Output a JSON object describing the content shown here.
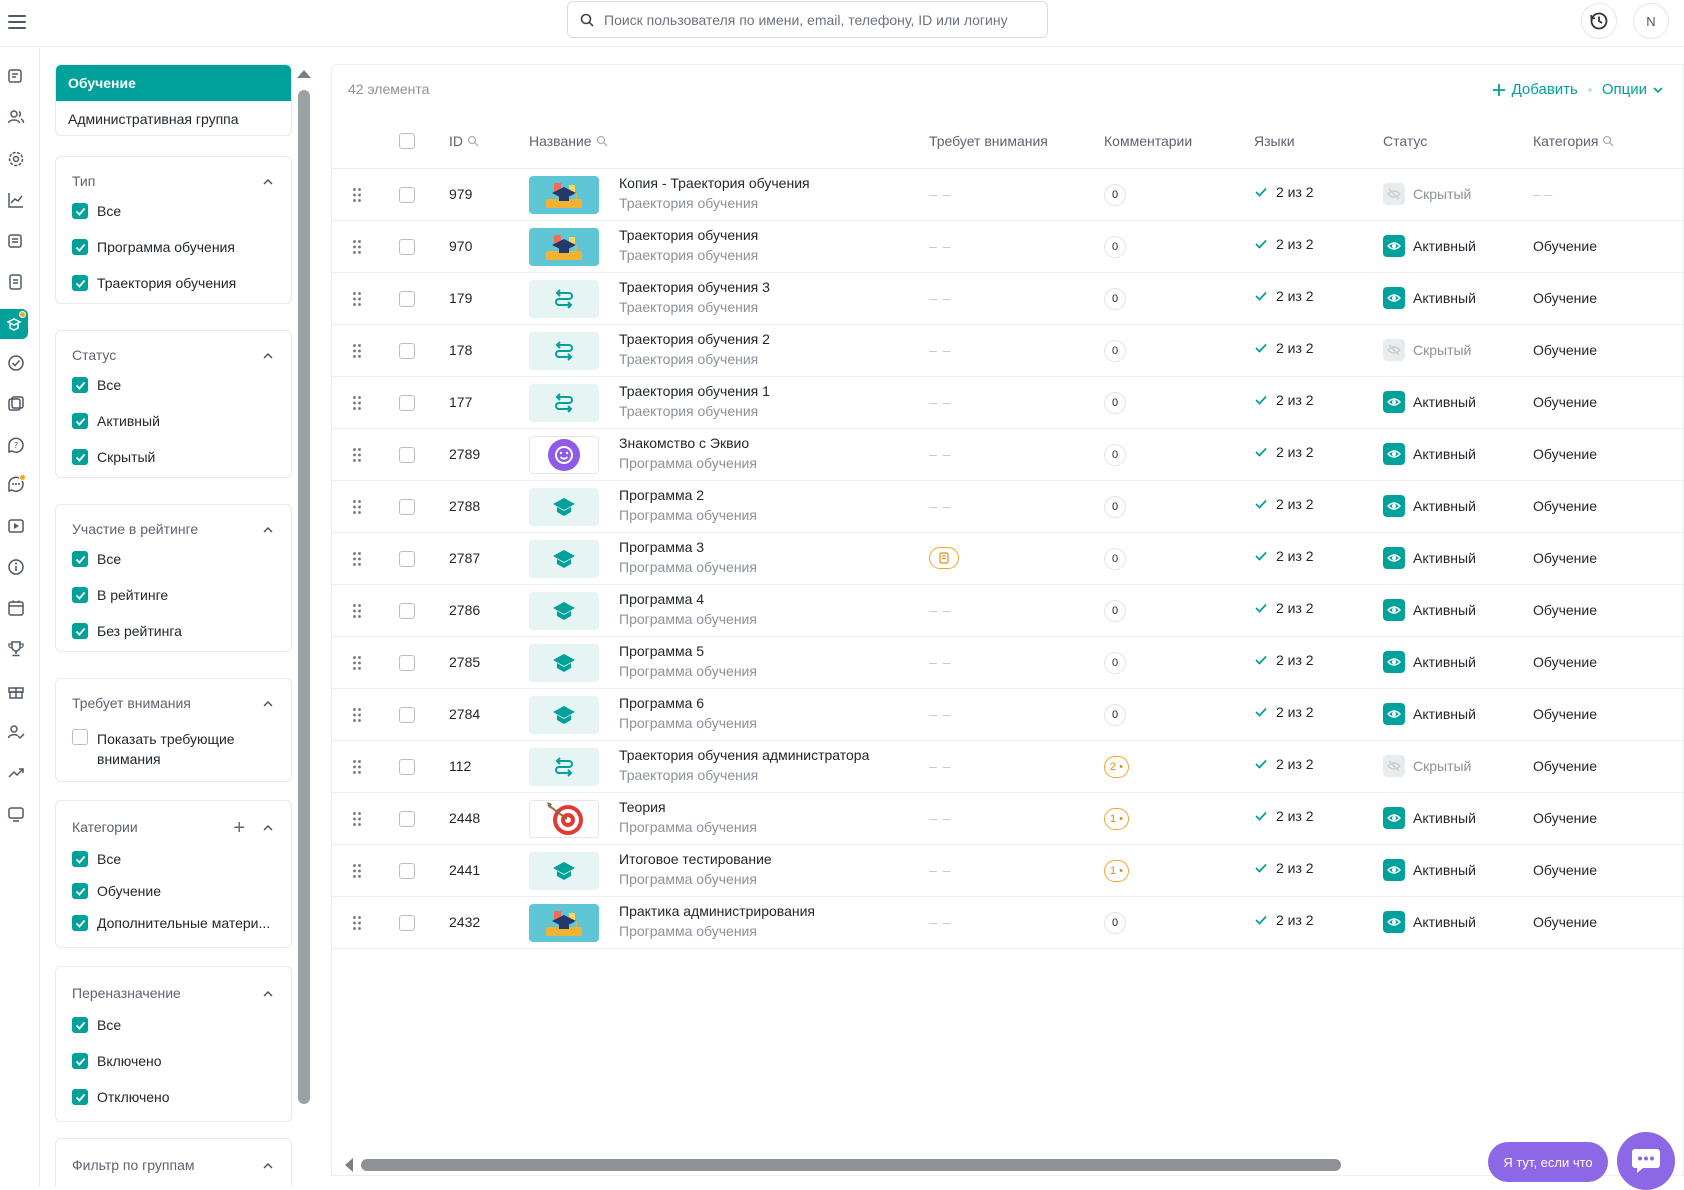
{
  "search": {
    "placeholder": "Поиск пользователя по имени, email, телефону, ID или логину"
  },
  "header": {
    "avatar_letter": "N"
  },
  "sections": {
    "active": "Обучение",
    "other": "Административная группа"
  },
  "filters": {
    "type": {
      "title": "Тип",
      "options": [
        "Все",
        "Программа обучения",
        "Траектория обучения"
      ]
    },
    "status": {
      "title": "Статус",
      "options": [
        "Все",
        "Активный",
        "Скрытый"
      ]
    },
    "rating": {
      "title": "Участие в рейтинге",
      "options": [
        "Все",
        "В рейтинге",
        "Без рейтинга"
      ]
    },
    "attention": {
      "title": "Требует внимания",
      "option_line1": "Показать требующие",
      "option_line2": "внимания"
    },
    "categories": {
      "title": "Категории",
      "options": [
        "Все",
        "Обучение",
        "Дополнительные матери..."
      ]
    },
    "reassign": {
      "title": "Переназначение",
      "options": [
        "Все",
        "Включено",
        "Отключено"
      ]
    },
    "groups": {
      "title": "Фильтр по группам"
    }
  },
  "table": {
    "count": "42 элемента",
    "add_label": "Добавить",
    "options_label": "Опции",
    "columns": {
      "id": "ID",
      "name": "Название",
      "attention": "Требует внимания",
      "comments": "Комментарии",
      "languages": "Языки",
      "status": "Статус",
      "category": "Категория"
    },
    "rows": [
      {
        "id": "979",
        "name": "Копия - Траектория обучения",
        "sub": "Траектория обучения",
        "thumb": "hat",
        "attention": "– –",
        "comments": "0",
        "languages": "2 из 2",
        "status": "Скрытый",
        "category": "– –"
      },
      {
        "id": "970",
        "name": "Траектория обучения",
        "sub": "Траектория обучения",
        "thumb": "hat",
        "attention": "– –",
        "comments": "0",
        "languages": "2 из 2",
        "status": "Активный",
        "category": "Обучение"
      },
      {
        "id": "179",
        "name": "Траектория обучения 3",
        "sub": "Траектория обучения",
        "thumb": "route",
        "attention": "– –",
        "comments": "0",
        "languages": "2 из 2",
        "status": "Активный",
        "category": "Обучение"
      },
      {
        "id": "178",
        "name": "Траектория обучения 2",
        "sub": "Траектория обучения",
        "thumb": "route",
        "attention": "– –",
        "comments": "0",
        "languages": "2 из 2",
        "status": "Скрытый",
        "category": "Обучение"
      },
      {
        "id": "177",
        "name": "Траектория обучения 1",
        "sub": "Траектория обучения",
        "thumb": "route",
        "attention": "– –",
        "comments": "0",
        "languages": "2 из 2",
        "status": "Активный",
        "category": "Обучение"
      },
      {
        "id": "2789",
        "name": "Знакомство с Эквио",
        "sub": "Программа обучения",
        "thumb": "smile",
        "attention": "– –",
        "comments": "0",
        "languages": "2 из 2",
        "status": "Активный",
        "category": "Обучение"
      },
      {
        "id": "2788",
        "name": "Программа 2",
        "sub": "Программа обучения",
        "thumb": "cap",
        "attention": "– –",
        "comments": "0",
        "languages": "2 из 2",
        "status": "Активный",
        "category": "Обучение"
      },
      {
        "id": "2787",
        "name": "Программа 3",
        "sub": "Программа обучения",
        "thumb": "cap",
        "attention": "note",
        "comments": "0",
        "languages": "2 из 2",
        "status": "Активный",
        "category": "Обучение"
      },
      {
        "id": "2786",
        "name": "Программа 4",
        "sub": "Программа обучения",
        "thumb": "cap",
        "attention": "– –",
        "comments": "0",
        "languages": "2 из 2",
        "status": "Активный",
        "category": "Обучение"
      },
      {
        "id": "2785",
        "name": "Программа 5",
        "sub": "Программа обучения",
        "thumb": "cap",
        "attention": "– –",
        "comments": "0",
        "languages": "2 из 2",
        "status": "Активный",
        "category": "Обучение"
      },
      {
        "id": "2784",
        "name": "Программа 6",
        "sub": "Программа обучения",
        "thumb": "cap",
        "attention": "– –",
        "comments": "0",
        "languages": "2 из 2",
        "status": "Активный",
        "category": "Обучение"
      },
      {
        "id": "112",
        "name": "Траектория обучения администратора",
        "sub": "Траектория обучения",
        "thumb": "route",
        "attention": "– –",
        "comments": "2 •",
        "languages": "2 из 2",
        "status": "Скрытый",
        "category": "Обучение"
      },
      {
        "id": "2448",
        "name": "Теория",
        "sub": "Программа обучения",
        "thumb": "target",
        "attention": "– –",
        "comments": "1 •",
        "languages": "2 из 2",
        "status": "Активный",
        "category": "Обучение"
      },
      {
        "id": "2441",
        "name": "Итоговое тестирование",
        "sub": "Программа обучения",
        "thumb": "cap",
        "attention": "– –",
        "comments": "1 •",
        "languages": "2 из 2",
        "status": "Активный",
        "category": "Обучение"
      },
      {
        "id": "2432",
        "name": "Практика администрирования",
        "sub": "Программа обучения",
        "thumb": "hat",
        "attention": "– –",
        "comments": "0",
        "languages": "2 из 2",
        "status": "Активный",
        "category": "Обучение"
      }
    ]
  },
  "help": {
    "label": "Я тут, если что"
  },
  "colors": {
    "accent": "#00a19a",
    "help": "#8c68e6",
    "warning": "#f4a42a"
  }
}
